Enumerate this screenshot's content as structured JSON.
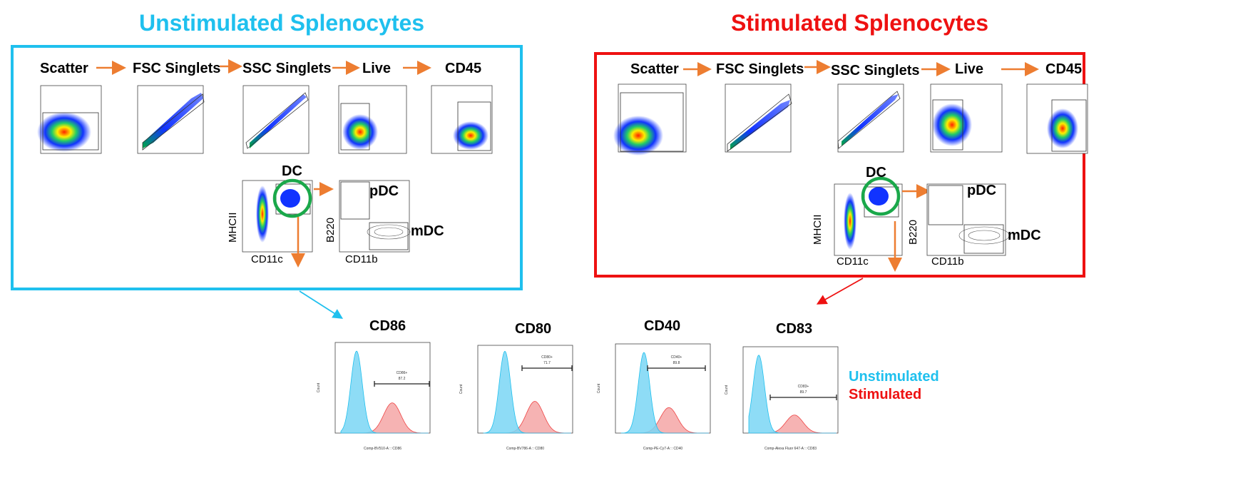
{
  "titles": {
    "unstim": "Unstimulated Splenocytes",
    "stim": "Stimulated Splenocytes"
  },
  "steps": [
    "Scatter",
    "FSC Singlets",
    "SSC Singlets",
    "Live",
    "CD45"
  ],
  "dc_gate": {
    "dc_label": "DC",
    "pdc_label": "pDC",
    "mdc_label": "mDC",
    "x_label_1": "CD11c",
    "y_label_1": "MHCII",
    "x_label_2": "CD11b",
    "y_label_2": "B220"
  },
  "histograms": {
    "titles": [
      "CD86",
      "CD80",
      "CD40",
      "CD83"
    ],
    "gates": [
      {
        "name": "CD86+",
        "pct": "87.2"
      },
      {
        "name": "CD80+",
        "pct": "71.7"
      },
      {
        "name": "CD40+",
        "pct": "89.8"
      },
      {
        "name": "CD83+",
        "pct": "89.7"
      }
    ],
    "y_label": "Count",
    "x_labels": [
      "Comp-BV510-A :: CD86",
      "Comp-BV786-A :: CD80",
      "Comp-PE-Cy7-A :: CD40",
      "Comp-Alexa Fluor 647-A :: CD83"
    ]
  },
  "legend": {
    "unstim": "Unstimulated",
    "stim": "Stimulated"
  },
  "colors": {
    "unstim": "#1fc0ee",
    "stim": "#ee1111",
    "arrow": "#ed7d31",
    "gate_circle": "#1aa84a"
  }
}
